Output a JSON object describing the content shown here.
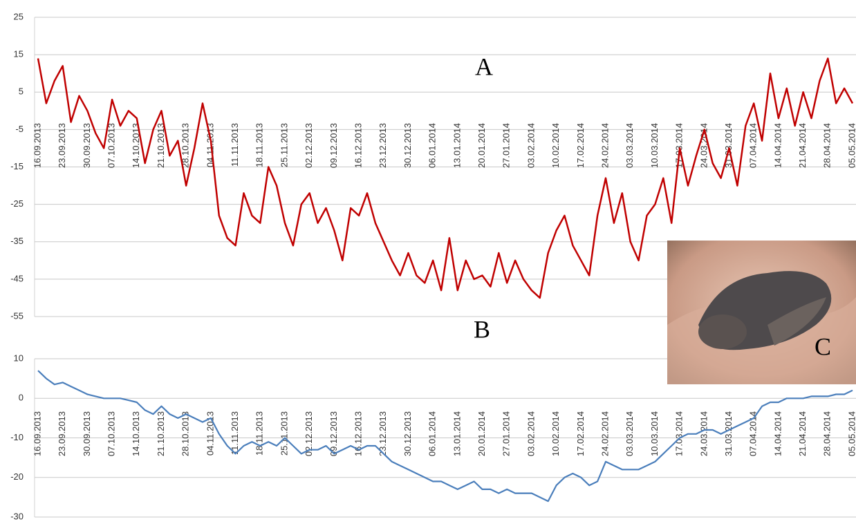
{
  "chart_data": [
    {
      "type": "line",
      "annotations": [
        "A",
        "B"
      ],
      "categories": [
        "16.09.2013",
        null,
        null,
        "23.09.2013",
        null,
        null,
        "30.09.2013",
        null,
        null,
        "07.10.2013",
        null,
        null,
        "14.10.2013",
        null,
        null,
        "21.10.2013",
        null,
        null,
        "28.10.2013",
        null,
        null,
        "04.11.2013",
        null,
        null,
        "11.11.2013",
        null,
        null,
        "18.11.2013",
        null,
        null,
        "25.11.2013",
        null,
        null,
        "02.12.2013",
        null,
        null,
        "09.12.2013",
        null,
        null,
        "16.12.2013",
        null,
        null,
        "23.12.2013",
        null,
        null,
        "30.12.2013",
        null,
        null,
        "06.01.2014",
        null,
        null,
        "13.01.2014",
        null,
        null,
        "20.01.2014",
        null,
        null,
        "27.01.2014",
        null,
        null,
        "03.02.2014",
        null,
        null,
        "10.02.2014",
        null,
        null,
        "17.02.2014",
        null,
        null,
        "24.02.2014",
        null,
        null,
        "03.03.2014",
        null,
        null,
        "10.03.2014",
        null,
        null,
        "17.03.2014",
        null,
        null,
        "24.03.2014",
        null,
        null,
        "31.03.2014",
        null,
        null,
        "07.04.2014",
        null,
        null,
        "14.04.2014",
        null,
        null,
        "21.04.2014",
        null,
        null,
        "28.04.2014",
        null,
        null,
        "05.05.2014"
      ],
      "series": [
        {
          "color": "#c00000",
          "values": [
            14,
            2,
            8,
            12,
            -3,
            4,
            0,
            -6,
            -10,
            3,
            -4,
            0,
            -2,
            -14,
            -5,
            0,
            -12,
            -8,
            -20,
            -10,
            2,
            -8,
            -28,
            -34,
            -36,
            -22,
            -28,
            -30,
            -15,
            -20,
            -30,
            -36,
            -25,
            -22,
            -30,
            -26,
            -32,
            -40,
            -26,
            -28,
            -22,
            -30,
            -35,
            -40,
            -44,
            -38,
            -44,
            -46,
            -40,
            -48,
            -34,
            -48,
            -40,
            -45,
            -44,
            -47,
            -38,
            -46,
            -40,
            -45,
            -48,
            -50,
            -38,
            -32,
            -28,
            -36,
            -40,
            -44,
            -28,
            -18,
            -30,
            -22,
            -35,
            -40,
            -28,
            -25,
            -18,
            -30,
            -10,
            -20,
            -12,
            -5,
            -14,
            -18,
            -10,
            -20,
            -4,
            2,
            -8,
            10,
            -2,
            6,
            -4,
            5,
            -2,
            8,
            14,
            2,
            6,
            2
          ]
        }
      ],
      "ylim": [
        -55,
        25
      ],
      "yticks": [
        -55,
        -45,
        -35,
        -25,
        -15,
        -5,
        5,
        15,
        25
      ],
      "grid": true
    },
    {
      "type": "line",
      "categories": [
        "16.09.2013",
        null,
        null,
        "23.09.2013",
        null,
        null,
        "30.09.2013",
        null,
        null,
        "07.10.2013",
        null,
        null,
        "14.10.2013",
        null,
        null,
        "21.10.2013",
        null,
        null,
        "28.10.2013",
        null,
        null,
        "04.11.2013",
        null,
        null,
        "11.11.2013",
        null,
        null,
        "18.11.2013",
        null,
        null,
        "25.11.2013",
        null,
        null,
        "02.12.2013",
        null,
        null,
        "09.12.2013",
        null,
        null,
        "16.12.2013",
        null,
        null,
        "23.12.2013",
        null,
        null,
        "30.12.2013",
        null,
        null,
        "06.01.2014",
        null,
        null,
        "13.01.2014",
        null,
        null,
        "20.01.2014",
        null,
        null,
        "27.01.2014",
        null,
        null,
        "03.02.2014",
        null,
        null,
        "10.02.2014",
        null,
        null,
        "17.02.2014",
        null,
        null,
        "24.02.2014",
        null,
        null,
        "03.03.2014",
        null,
        null,
        "10.03.2014",
        null,
        null,
        "17.03.2014",
        null,
        null,
        "24.03.2014",
        null,
        null,
        "31.03.2014",
        null,
        null,
        "07.04.2014",
        null,
        null,
        "14.04.2014",
        null,
        null,
        "21.04.2014",
        null,
        null,
        "28.04.2014",
        null,
        null,
        "05.05.2014"
      ],
      "series": [
        {
          "color": "#4a7ebb",
          "values": [
            7,
            5,
            3.5,
            4,
            3,
            2,
            1,
            0.5,
            0,
            0,
            0,
            -0.5,
            -1,
            -3,
            -4,
            -2,
            -4,
            -5,
            -4,
            -5,
            -6,
            -5,
            -9,
            -12,
            -14,
            -12,
            -11,
            -12,
            -11,
            -12,
            -10,
            -12,
            -14,
            -13,
            -13,
            -12,
            -14,
            -13,
            -12,
            -13,
            -12,
            -12,
            -14,
            -16,
            -17,
            -18,
            -19,
            -20,
            -21,
            -21,
            -22,
            -23,
            -22,
            -21,
            -23,
            -23,
            -24,
            -23,
            -24,
            -24,
            -24,
            -25,
            -26,
            -22,
            -20,
            -19,
            -20,
            -22,
            -21,
            -16,
            -17,
            -18,
            -18,
            -18,
            -17,
            -16,
            -14,
            -12,
            -10,
            -9,
            -9,
            -8,
            -8,
            -9,
            -8,
            -7,
            -6,
            -5,
            -2,
            -1,
            -1,
            0,
            0,
            0,
            0.5,
            0.5,
            0.5,
            1,
            1,
            2
          ]
        }
      ],
      "ylim": [
        -30,
        10
      ],
      "yticks": [
        -30,
        -20,
        -10,
        0,
        10
      ],
      "grid": true
    }
  ],
  "photo": {
    "label": "C"
  }
}
